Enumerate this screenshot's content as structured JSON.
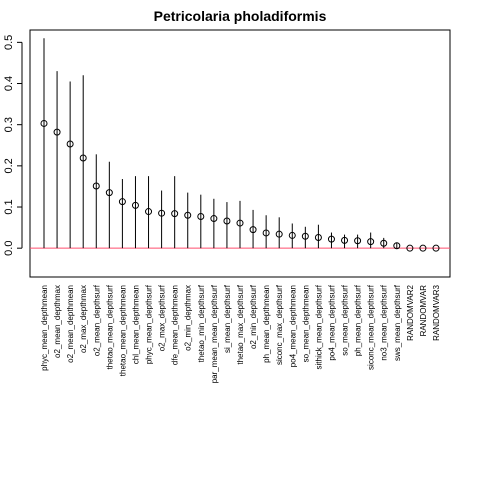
{
  "chart_data": {
    "type": "scatter",
    "title": "Petricolaria pholadiformis",
    "xlabel": "",
    "ylabel": "",
    "ylim": [
      -0.07,
      0.53
    ],
    "yticks": [
      "0.0",
      "0.1",
      "0.2",
      "0.3",
      "0.4",
      "0.5"
    ],
    "grid": false,
    "reference_line": 0,
    "colors": {
      "points": "#000000",
      "whiskers": "#000000",
      "zero_line": "#ff4d6d",
      "box": "#000000"
    },
    "categories": [
      "phyc_mean_depthmean",
      "o2_mean_depthmax",
      "o2_mean_depthmean",
      "o2_max_depthmax",
      "o2_mean_depthsurf",
      "thetao_mean_depthsurf",
      "thetao_mean_depthmean",
      "chl_mean_depthmean",
      "phyc_mean_depthsurf",
      "o2_max_depthsurf",
      "dfe_mean_depthmean",
      "o2_min_depthmax",
      "thetao_min_depthsurf",
      "par_mean_mean_depthsurf",
      "si_mean_depthsurf",
      "thetao_max_depthsurf",
      "o2_min_depthsurf",
      "ph_mean_depthmean",
      "siconc_max_depthsurf",
      "po4_mean_depthmean",
      "so_mean_depthmean",
      "sithick_mean_depthsurf",
      "po4_mean_depthsurf",
      "so_mean_depthsurf",
      "ph_mean_depthsurf",
      "siconc_mean_depthsurf",
      "no3_mean_depthsurf",
      "sws_mean_depthsurf",
      "RANDOMVAR2",
      "RANDOMVAR",
      "RANDOMVAR3"
    ],
    "series": [
      {
        "values": [
          0.303,
          0.282,
          0.253,
          0.219,
          0.151,
          0.135,
          0.113,
          0.104,
          0.089,
          0.085,
          0.084,
          0.08,
          0.077,
          0.072,
          0.066,
          0.061,
          0.045,
          0.037,
          0.034,
          0.031,
          0.029,
          0.026,
          0.022,
          0.019,
          0.018,
          0.016,
          0.012,
          0.006,
          0.0,
          0.0,
          0.0
        ],
        "upper": [
          0.51,
          0.43,
          0.405,
          0.42,
          0.228,
          0.21,
          0.168,
          0.175,
          0.175,
          0.14,
          0.175,
          0.135,
          0.13,
          0.12,
          0.112,
          0.115,
          0.093,
          0.08,
          0.075,
          0.06,
          0.052,
          0.057,
          0.038,
          0.033,
          0.033,
          0.038,
          0.025,
          0.013,
          0.0,
          0.0,
          0.0
        ],
        "lower": [
          0.0,
          0.0,
          0.0,
          0.0,
          0.0,
          0.0,
          0.0,
          0.0,
          0.0,
          0.0,
          0.0,
          0.0,
          0.0,
          0.0,
          0.0,
          0.0,
          0.0,
          0.0,
          0.0,
          0.0,
          0.0,
          0.0,
          0.0,
          0.0,
          0.0,
          0.0,
          0.0,
          0.0,
          0.0,
          0.0,
          0.0
        ]
      }
    ]
  }
}
